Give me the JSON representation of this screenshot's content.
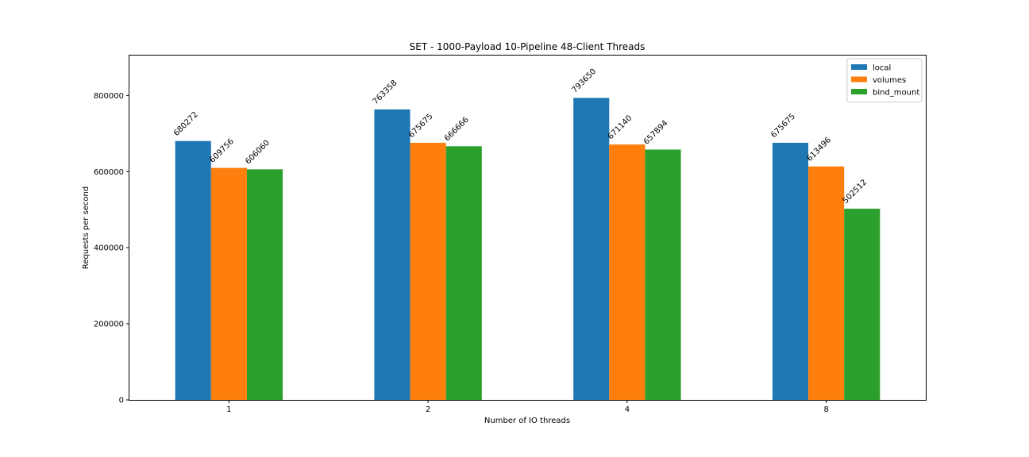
{
  "chart_data": {
    "type": "bar",
    "title": "SET - 1000-Payload 10-Pipeline 48-Client Threads",
    "xlabel": "Number of IO threads",
    "ylabel": "Requests per second",
    "categories": [
      "1",
      "2",
      "4",
      "8"
    ],
    "series": [
      {
        "name": "local",
        "color": "#1f77b4",
        "values": [
          680272,
          763358,
          793650,
          675675
        ]
      },
      {
        "name": "volumes",
        "color": "#ff7f0e",
        "values": [
          609756,
          675675,
          671140,
          613496
        ]
      },
      {
        "name": "bind_mount",
        "color": "#2ca02c",
        "values": [
          606060,
          666666,
          657894,
          502512
        ]
      }
    ],
    "ylim": [
      0,
      905000
    ],
    "yticks": [
      0,
      200000,
      400000,
      600000,
      800000
    ],
    "legend_position": "top-right",
    "grid": false
  }
}
